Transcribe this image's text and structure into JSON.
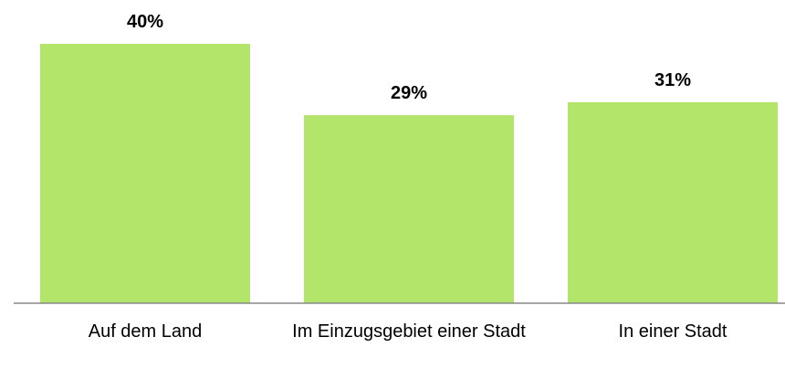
{
  "chart_data": {
    "type": "bar",
    "categories": [
      "Auf dem Land",
      "Im Einzugsgebiet einer Stadt",
      "In einer Stadt"
    ],
    "values": [
      40,
      29,
      31
    ],
    "value_labels": [
      "40%",
      "29%",
      "31%"
    ],
    "color": "#b3e56b"
  }
}
